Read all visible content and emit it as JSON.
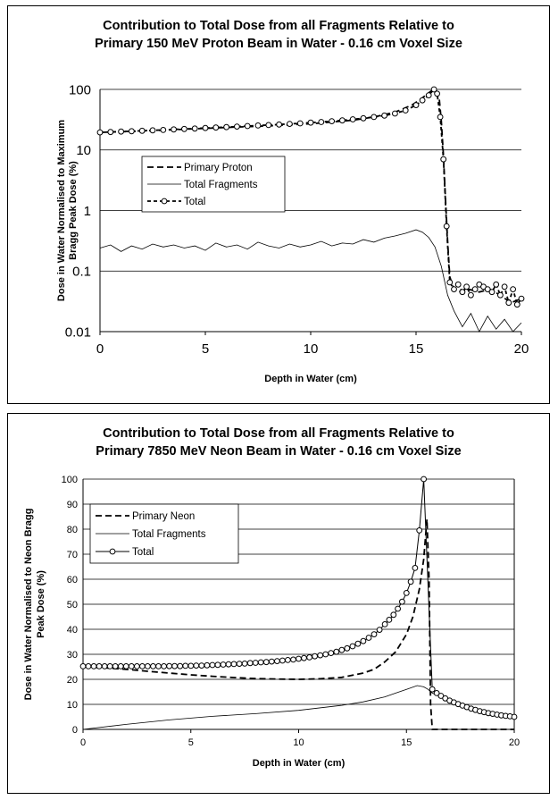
{
  "chart_data": [
    {
      "type": "line",
      "title_line1": "Contribution to Total Dose from all Fragments Relative to",
      "title_line2": "Primary 150 MeV Proton Beam in Water - 0.16 cm Voxel Size",
      "xlabel": "Depth in Water (cm)",
      "ylabel_line1": "Dose in Water Normalised to Maximum",
      "ylabel_line2": "Bragg Peak Dose (%)",
      "yscale": "log",
      "xlim": [
        0,
        20
      ],
      "ylim": [
        0.01,
        100
      ],
      "x_ticks": [
        "0",
        "5",
        "10",
        "15",
        "20"
      ],
      "y_ticks": [
        "0.01",
        "0.1",
        "1",
        "10",
        "100"
      ],
      "grid": "horizontal",
      "legend": "inside-center-left",
      "series": [
        {
          "name": "Primary Proton",
          "style": "dashed",
          "x": [
            0,
            2,
            4,
            6,
            8,
            10,
            12,
            13,
            14,
            14.8,
            15.2,
            15.5,
            15.7,
            15.85,
            16.0,
            16.1,
            16.2,
            16.3,
            16.4,
            16.5,
            16.6,
            16.8,
            17,
            17.5,
            18,
            18.5,
            19,
            19.5,
            20
          ],
          "y": [
            19.5,
            20.5,
            22,
            23.5,
            25,
            27,
            31,
            35,
            42,
            55,
            68,
            82,
            93,
            100,
            90,
            70,
            30,
            8,
            1.5,
            0.3,
            0.08,
            0.05,
            0.045,
            0.05,
            0.045,
            0.05,
            0.04,
            0.03,
            0.035
          ]
        },
        {
          "name": "Total Fragments",
          "style": "solid",
          "x": [
            0,
            0.5,
            1,
            1.5,
            2,
            2.5,
            3,
            3.5,
            4,
            4.5,
            5,
            5.5,
            6,
            6.5,
            7,
            7.5,
            8,
            8.5,
            9,
            9.5,
            10,
            10.5,
            11,
            11.5,
            12,
            12.5,
            13,
            13.5,
            14,
            14.5,
            15,
            15.3,
            15.6,
            15.9,
            16.2,
            16.5,
            16.8,
            17.2,
            17.6,
            18,
            18.4,
            18.8,
            19.2,
            19.6,
            20
          ],
          "y": [
            0.24,
            0.27,
            0.21,
            0.26,
            0.23,
            0.28,
            0.25,
            0.27,
            0.24,
            0.26,
            0.22,
            0.29,
            0.25,
            0.27,
            0.23,
            0.3,
            0.26,
            0.24,
            0.28,
            0.25,
            0.27,
            0.31,
            0.26,
            0.29,
            0.28,
            0.33,
            0.3,
            0.35,
            0.38,
            0.42,
            0.48,
            0.44,
            0.36,
            0.25,
            0.12,
            0.04,
            0.022,
            0.012,
            0.02,
            0.01,
            0.018,
            0.011,
            0.016,
            0.009,
            0.014
          ]
        },
        {
          "name": "Total",
          "style": "dashed-circle",
          "x": [
            0,
            0.5,
            1,
            1.5,
            2,
            2.5,
            3,
            3.5,
            4,
            4.5,
            5,
            5.5,
            6,
            6.5,
            7,
            7.5,
            8,
            8.5,
            9,
            9.5,
            10,
            10.5,
            11,
            11.5,
            12,
            12.5,
            13,
            13.5,
            14,
            14.5,
            15,
            15.3,
            15.6,
            15.85,
            16.0,
            16.15,
            16.3,
            16.45,
            16.6,
            16.8,
            17.0,
            17.2,
            17.4,
            17.6,
            17.8,
            18.0,
            18.2,
            18.4,
            18.6,
            18.8,
            19.0,
            19.2,
            19.4,
            19.6,
            19.8,
            20.0
          ],
          "y": [
            19.5,
            19.8,
            20.1,
            20.4,
            20.7,
            21.1,
            21.4,
            21.8,
            22.2,
            22.6,
            23,
            23.4,
            23.8,
            24.3,
            24.8,
            25.3,
            25.8,
            26.3,
            26.9,
            27.5,
            28.2,
            28.9,
            29.8,
            30.8,
            32,
            33.4,
            35,
            37,
            40,
            45,
            55,
            66,
            80,
            100,
            85,
            35,
            7,
            0.55,
            0.065,
            0.05,
            0.06,
            0.045,
            0.055,
            0.04,
            0.05,
            0.06,
            0.055,
            0.05,
            0.045,
            0.06,
            0.04,
            0.055,
            0.03,
            0.05,
            0.028,
            0.035
          ]
        }
      ]
    },
    {
      "type": "line",
      "title_line1": "Contribution to Total Dose from all Fragments Relative to",
      "title_line2": "Primary 7850 MeV Neon Beam in Water - 0.16 cm Voxel Size",
      "xlabel": "Depth in Water (cm)",
      "ylabel_line1": "Dose in Water Normalised to Neon Bragg",
      "ylabel_line2": "Peak Dose (%)",
      "yscale": "linear",
      "xlim": [
        0,
        20
      ],
      "ylim": [
        0,
        100
      ],
      "x_ticks": [
        "0",
        "5",
        "10",
        "15",
        "20"
      ],
      "y_ticks": [
        "0",
        "10",
        "20",
        "30",
        "40",
        "50",
        "60",
        "70",
        "80",
        "90",
        "100"
      ],
      "grid": "horizontal",
      "legend": "inside-top-left",
      "series": [
        {
          "name": "Primary Neon",
          "style": "dashed",
          "x": [
            0,
            1,
            2,
            3,
            4,
            5,
            6,
            7,
            8,
            9,
            10,
            11,
            12,
            13,
            13.5,
            14,
            14.5,
            15,
            15.3,
            15.6,
            15.8,
            15.95,
            16.05,
            16.12,
            16.2,
            17,
            18,
            19,
            20
          ],
          "y": [
            25,
            24.6,
            24,
            23.2,
            22.5,
            21.8,
            21.2,
            20.7,
            20.3,
            20.1,
            20,
            20.2,
            20.8,
            22.5,
            24,
            27,
            31,
            38,
            45,
            56,
            68,
            84,
            60,
            10,
            0,
            0,
            0,
            0,
            0
          ]
        },
        {
          "name": "Total Fragments",
          "style": "solid",
          "x": [
            0,
            2,
            4,
            6,
            8,
            10,
            12,
            13,
            14,
            14.5,
            15,
            15.5,
            15.8,
            16.0,
            16.2,
            16.6,
            17,
            17.5,
            18,
            18.5,
            19,
            19.5,
            20
          ],
          "y": [
            0,
            2,
            3.8,
            5.2,
            6.3,
            7.6,
            9.6,
            11,
            13,
            14.5,
            16,
            17.5,
            17,
            16,
            14.5,
            13,
            11.5,
            10,
            8.7,
            7.5,
            6.5,
            5.6,
            5
          ]
        },
        {
          "name": "Total",
          "style": "solid-circle",
          "x": [
            0,
            0.25,
            0.5,
            0.75,
            1,
            1.25,
            1.5,
            1.75,
            2,
            2.25,
            2.5,
            2.75,
            3,
            3.25,
            3.5,
            3.75,
            4,
            4.25,
            4.5,
            4.75,
            5,
            5.25,
            5.5,
            5.75,
            6,
            6.25,
            6.5,
            6.75,
            7,
            7.25,
            7.5,
            7.75,
            8,
            8.25,
            8.5,
            8.75,
            9,
            9.25,
            9.5,
            9.75,
            10,
            10.25,
            10.5,
            10.75,
            11,
            11.25,
            11.5,
            11.75,
            12,
            12.25,
            12.5,
            12.75,
            13,
            13.25,
            13.5,
            13.75,
            14,
            14.2,
            14.4,
            14.6,
            14.8,
            15,
            15.2,
            15.4,
            15.6,
            15.8,
            16.2,
            16.4,
            16.6,
            16.8,
            17,
            17.2,
            17.4,
            17.6,
            17.8,
            18,
            18.2,
            18.4,
            18.6,
            18.8,
            19,
            19.2,
            19.4,
            19.6,
            19.8,
            20
          ],
          "y": [
            25.2,
            25.2,
            25.2,
            25.2,
            25.2,
            25.2,
            25.2,
            25.2,
            25.2,
            25.2,
            25.2,
            25.2,
            25.2,
            25.2,
            25.2,
            25.2,
            25.3,
            25.3,
            25.3,
            25.4,
            25.4,
            25.5,
            25.5,
            25.6,
            25.7,
            25.8,
            25.9,
            26,
            26.1,
            26.2,
            26.3,
            26.5,
            26.6,
            26.8,
            26.9,
            27.1,
            27.3,
            27.5,
            27.7,
            27.9,
            28.2,
            28.5,
            28.8,
            29.2,
            29.6,
            30,
            30.5,
            31,
            31.7,
            32.4,
            33.2,
            34.2,
            35.3,
            36.6,
            38,
            39.8,
            42,
            43.8,
            45.8,
            48.2,
            51,
            54.5,
            59,
            64.5,
            79.5,
            100,
            16,
            14.5,
            13.4,
            12.4,
            11.5,
            10.8,
            10.1,
            9.5,
            8.9,
            8.3,
            7.8,
            7.3,
            6.9,
            6.5,
            6.2,
            5.9,
            5.6,
            5.4,
            5.2,
            5
          ]
        }
      ]
    }
  ]
}
